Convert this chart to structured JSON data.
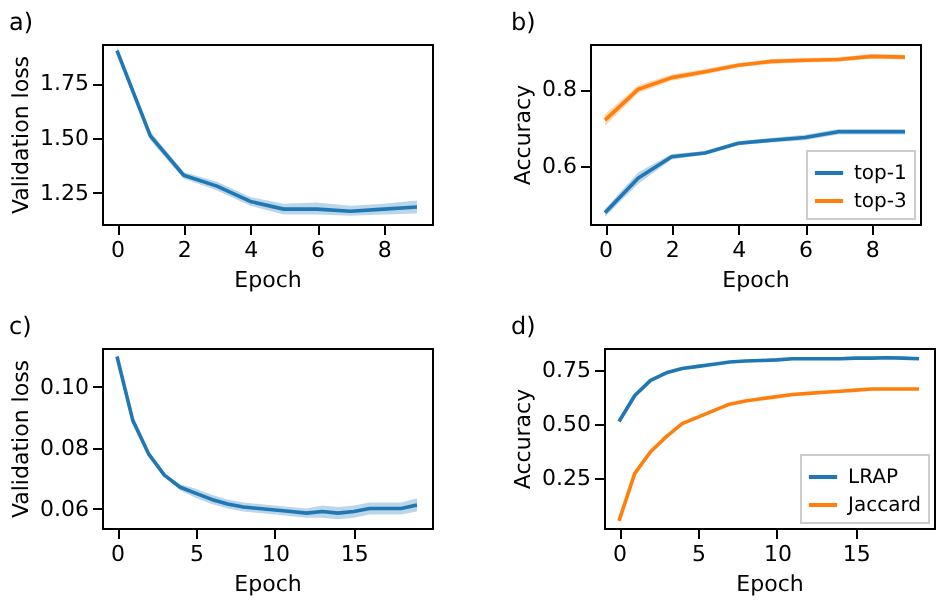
{
  "chart_data": [
    {
      "type": "line",
      "title": "a)",
      "xlabel": "Epoch",
      "ylabel": "Validation loss",
      "x": [
        0,
        1,
        2,
        3,
        4,
        5,
        6,
        7,
        8,
        9
      ],
      "xlim": [
        -0.45,
        9.45
      ],
      "xticks": [
        0,
        2,
        4,
        6,
        8
      ],
      "ylim": [
        1.107,
        1.93
      ],
      "yticks": [
        1.25,
        {
          "value": 1.5,
          "label": "1.50"
        },
        1.75
      ],
      "grid": false,
      "legend": false,
      "series": [
        {
          "color": "#1f77b4",
          "values": [
            1.9,
            1.51,
            1.33,
            1.28,
            1.21,
            1.175,
            1.175,
            1.165,
            1.175,
            1.185
          ],
          "lower": [
            1.88,
            1.49,
            1.315,
            1.26,
            1.19,
            1.15,
            1.15,
            1.145,
            1.15,
            1.155
          ],
          "upper": [
            1.92,
            1.53,
            1.345,
            1.3,
            1.23,
            1.2,
            1.205,
            1.19,
            1.2,
            1.215
          ]
        }
      ]
    },
    {
      "type": "line",
      "title": "b)",
      "xlabel": "Epoch",
      "ylabel": "Accuracy",
      "x": [
        0,
        1,
        2,
        3,
        4,
        5,
        6,
        7,
        8,
        9
      ],
      "xlim": [
        -0.45,
        9.45
      ],
      "xticks": [
        0,
        2,
        4,
        6,
        8
      ],
      "ylim": [
        0.451,
        0.917
      ],
      "yticks": [
        0.6,
        0.8
      ],
      "grid": false,
      "legend": "bottom right",
      "series": [
        {
          "name": "top-1",
          "color": "#1f77b4",
          "values": [
            0.48,
            0.57,
            0.625,
            0.635,
            0.66,
            0.668,
            0.675,
            0.69,
            0.69,
            0.69
          ],
          "lower": [
            0.47,
            0.555,
            0.618,
            0.63,
            0.655,
            0.662,
            0.668,
            0.683,
            0.683,
            0.683
          ],
          "upper": [
            0.49,
            0.585,
            0.632,
            0.64,
            0.665,
            0.674,
            0.682,
            0.697,
            0.697,
            0.697
          ]
        },
        {
          "name": "top-3",
          "color": "#ff7f0e",
          "values": [
            0.72,
            0.8,
            0.83,
            0.845,
            0.862,
            0.872,
            0.875,
            0.877,
            0.885,
            0.883
          ],
          "lower": [
            0.705,
            0.79,
            0.822,
            0.838,
            0.856,
            0.866,
            0.869,
            0.871,
            0.879,
            0.877
          ],
          "upper": [
            0.735,
            0.81,
            0.838,
            0.852,
            0.868,
            0.878,
            0.881,
            0.883,
            0.891,
            0.889
          ]
        }
      ]
    },
    {
      "type": "line",
      "title": "c)",
      "xlabel": "Epoch",
      "ylabel": "Validation loss",
      "x": [
        0,
        1,
        2,
        3,
        4,
        5,
        6,
        7,
        8,
        9,
        10,
        11,
        12,
        13,
        14,
        15,
        16,
        17,
        18,
        19
      ],
      "xlim": [
        -0.95,
        19.95
      ],
      "xticks": [
        0,
        5,
        10,
        15
      ],
      "ylim": [
        0.0536,
        0.1128
      ],
      "yticks": [
        0.06,
        0.08,
        {
          "value": 0.1,
          "label": "0.10"
        }
      ],
      "grid": false,
      "legend": false,
      "series": [
        {
          "color": "#1f77b4",
          "values": [
            0.11,
            0.089,
            0.078,
            0.071,
            0.067,
            0.065,
            0.063,
            0.0615,
            0.0605,
            0.06,
            0.0595,
            0.059,
            0.0585,
            0.059,
            0.0585,
            0.059,
            0.06,
            0.06,
            0.06,
            0.0612
          ],
          "lower": [
            0.1095,
            0.0885,
            0.0775,
            0.0705,
            0.066,
            0.0635,
            0.0615,
            0.06,
            0.059,
            0.0585,
            0.058,
            0.0575,
            0.057,
            0.057,
            0.0565,
            0.057,
            0.058,
            0.058,
            0.058,
            0.059
          ],
          "upper": [
            0.1105,
            0.0895,
            0.0785,
            0.0715,
            0.068,
            0.0665,
            0.0645,
            0.063,
            0.062,
            0.0615,
            0.061,
            0.0605,
            0.06,
            0.061,
            0.0605,
            0.061,
            0.062,
            0.062,
            0.062,
            0.0634
          ]
        }
      ]
    },
    {
      "type": "line",
      "title": "d)",
      "xlabel": "Epoch",
      "ylabel": "Accuracy",
      "x": [
        0,
        1,
        2,
        3,
        4,
        5,
        6,
        7,
        8,
        9,
        10,
        11,
        12,
        13,
        14,
        15,
        16,
        17,
        18,
        19
      ],
      "xlim": [
        -0.95,
        19.95
      ],
      "xticks": [
        0,
        5,
        10,
        15
      ],
      "ylim": [
        0.017,
        0.85
      ],
      "yticks": [
        0.25,
        {
          "value": 0.5,
          "label": "0.50"
        },
        0.75
      ],
      "grid": false,
      "legend": "bottom right",
      "series": [
        {
          "name": "LRAP",
          "color": "#1f77b4",
          "values": [
            0.51,
            0.63,
            0.7,
            0.735,
            0.755,
            0.765,
            0.775,
            0.785,
            0.79,
            0.792,
            0.795,
            0.8,
            0.8,
            0.8,
            0.8,
            0.803,
            0.803,
            0.805,
            0.803,
            0.8
          ]
        },
        {
          "name": "Jaccard",
          "color": "#ff7f0e",
          "values": [
            0.05,
            0.27,
            0.37,
            0.44,
            0.5,
            0.53,
            0.56,
            0.59,
            0.605,
            0.615,
            0.625,
            0.635,
            0.64,
            0.645,
            0.65,
            0.655,
            0.66,
            0.66,
            0.66,
            0.66
          ]
        }
      ]
    }
  ]
}
